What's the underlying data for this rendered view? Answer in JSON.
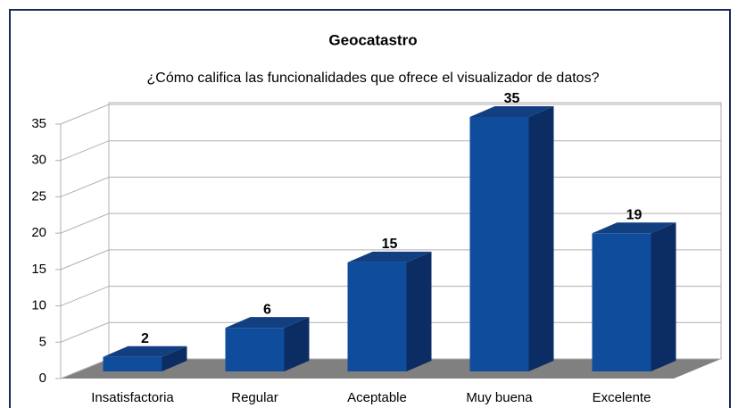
{
  "chart_data": {
    "type": "bar3d",
    "title": "Geocatastro",
    "subtitle": "¿Cómo califica las funcionalidades que ofrece el visualizador de datos?",
    "categories": [
      "Insatisfactoria",
      "Regular",
      "Aceptable",
      "Muy buena",
      "Excelente"
    ],
    "values": [
      2,
      6,
      15,
      35,
      19
    ],
    "color": "#0f4c9c",
    "ylim": [
      0,
      35
    ],
    "yticks": [
      0,
      5,
      10,
      15,
      20,
      25,
      30,
      35
    ],
    "grid": true
  }
}
